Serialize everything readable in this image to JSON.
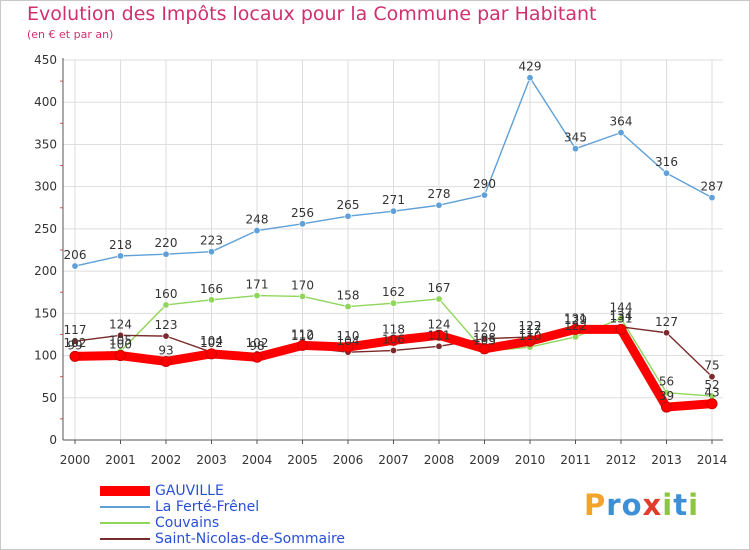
{
  "chart_data": {
    "type": "line",
    "title": "Evolution des Impôts locaux pour la Commune par Habitant",
    "subtitle": "(en € et par an)",
    "xlabel": "",
    "ylabel": "",
    "ylim": [
      0,
      450
    ],
    "yticks": [
      0,
      50,
      100,
      150,
      200,
      250,
      300,
      350,
      400,
      450
    ],
    "categories": [
      "2000",
      "2001",
      "2002",
      "2003",
      "2004",
      "2005",
      "2006",
      "2007",
      "2008",
      "2009",
      "2010",
      "2011",
      "2012",
      "2013",
      "2014"
    ],
    "grid": true,
    "legend_position": "bottom-left",
    "series": [
      {
        "name": "La Ferté-Frênel",
        "color": "#5fa0d8",
        "values": [
          206,
          218,
          220,
          223,
          248,
          256,
          265,
          271,
          278,
          290,
          429,
          345,
          364,
          316,
          287
        ],
        "labels": [
          "206",
          "218",
          "220",
          "223",
          "248",
          "256",
          "265",
          "271",
          "278",
          "290",
          "429",
          "345",
          "364",
          "316",
          "287"
        ]
      },
      {
        "name": "Couvains",
        "color": "#8fd65a",
        "values": [
          102,
          105,
          160,
          166,
          171,
          170,
          158,
          162,
          167,
          105,
          110,
          122,
          144,
          56,
          52
        ],
        "labels": [
          "102",
          "105",
          "160",
          "166",
          "171",
          "170",
          "158",
          "162",
          "167",
          "105",
          "110",
          "122",
          "144",
          "56",
          "52"
        ]
      },
      {
        "name": "Saint-Nicolas-de-Sommaire",
        "color": "#7a2a2a",
        "values": [
          117,
          124,
          123,
          104,
          102,
          110,
          104,
          106,
          111,
          120,
          122,
          129,
          134,
          127,
          75
        ],
        "labels": [
          "117",
          "124",
          "123",
          "104",
          "102",
          "110",
          "104",
          "106",
          "111",
          "120",
          "122",
          "129",
          "134",
          "127",
          "75"
        ]
      },
      {
        "name": "GAUVILLE",
        "color": "#ff0000",
        "values": [
          99,
          100,
          93,
          102,
          98,
          112,
          110,
          118,
          124,
          108,
          117,
          131,
          131,
          39,
          43
        ],
        "labels": [
          "99",
          "100",
          "93",
          "102",
          "98",
          "112",
          "110",
          "118",
          "124",
          "108",
          "117",
          "131",
          "131",
          "39",
          "43"
        ]
      }
    ]
  },
  "legend": [
    {
      "label": "GAUVILLE",
      "color": "#ff0000"
    },
    {
      "label": "La Ferté-Frênel",
      "color": "#5fa0d8"
    },
    {
      "label": "Couvains",
      "color": "#8fd65a"
    },
    {
      "label": "Saint-Nicolas-de-Sommaire",
      "color": "#7a2a2a"
    }
  ],
  "logo": {
    "p": "P",
    "r": "r",
    "o": "o",
    "x": "x",
    "i": "i",
    "t": "t",
    "i2": "i"
  }
}
